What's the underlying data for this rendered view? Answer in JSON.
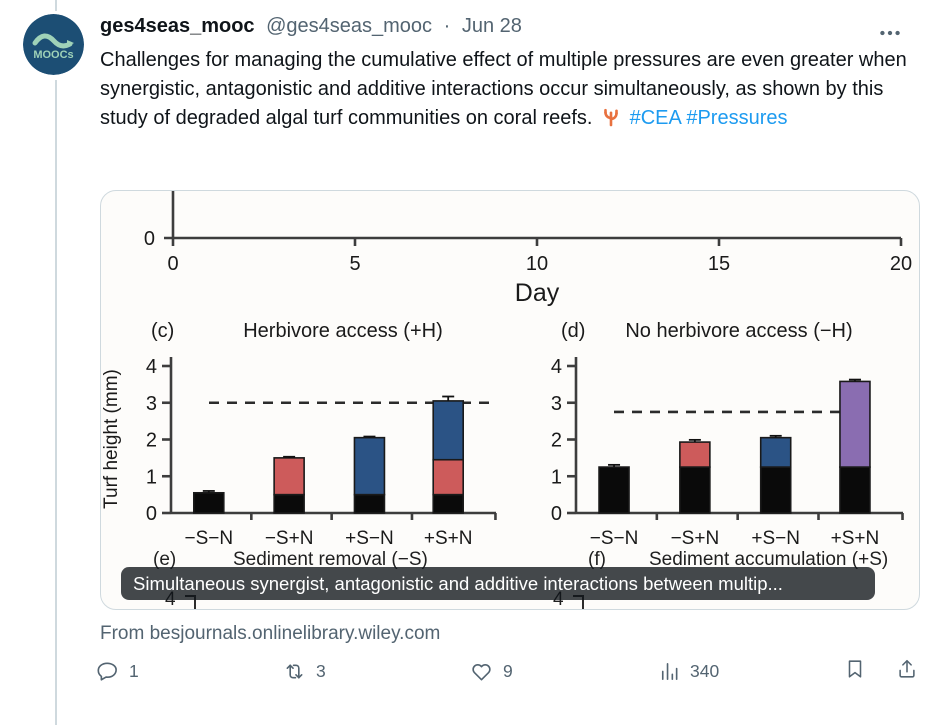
{
  "header": {
    "name": "ges4seas_mooc",
    "handle": "@ges4seas_mooc",
    "separator": "·",
    "date": "Jun 28",
    "avatar_text": "MOOCs",
    "avatar_bg": "#1c4e74",
    "avatar_accent": "#9fd2b8"
  },
  "tweet": {
    "text": "Challenges for managing the cumulative effect of multiple pressures are even greater when synergistic, antagonistic and additive interactions occur simultaneously, as shown by this study of degraded algal turf communities on coral reefs.",
    "hashtags": [
      "#CEA",
      "#Pressures"
    ],
    "link_color": "#1d9bf0",
    "coral_emoji_color": "#e8713f"
  },
  "media": {
    "caption": "Simultaneous synergist, antagonistic and additive interactions between multip...",
    "source": "From besjournals.onlinelibrary.wiley.com"
  },
  "chart_data": [
    {
      "type": "line",
      "note": "bottom x-axis of a cropped panel above",
      "xlabel": "Day",
      "x_range": [
        0,
        20
      ],
      "x_ticks": [
        "0",
        "5",
        "10",
        "15",
        "20"
      ],
      "visible_y_tick": "0"
    },
    {
      "type": "bar",
      "panel_label": "(c)",
      "title": "Herbivore access (+H)",
      "ylabel": "Turf height (mm)",
      "ylim": [
        0,
        4
      ],
      "y_ticks": [
        0,
        1,
        2,
        3,
        4
      ],
      "dashed_reference_y": 3.0,
      "categories": [
        "−S−N",
        "−S+N",
        "+S−N",
        "+S+N"
      ],
      "bars": [
        {
          "category": "−S−N",
          "segments": [
            {
              "name": "black",
              "color": "#0a0a0a",
              "value": 0.55
            }
          ],
          "error": 0.05
        },
        {
          "category": "−S+N",
          "segments": [
            {
              "name": "black",
              "color": "#0a0a0a",
              "value": 0.5
            },
            {
              "name": "red",
              "color": "#cd5b5b",
              "value": 1.0
            }
          ],
          "error": 0.03
        },
        {
          "category": "+S−N",
          "segments": [
            {
              "name": "black",
              "color": "#0a0a0a",
              "value": 0.5
            },
            {
              "name": "blue",
              "color": "#2b5385",
              "value": 1.55
            }
          ],
          "error": 0.03
        },
        {
          "category": "+S+N",
          "segments": [
            {
              "name": "black",
              "color": "#0a0a0a",
              "value": 0.5
            },
            {
              "name": "red",
              "color": "#cd5b5b",
              "value": 0.95
            },
            {
              "name": "blue",
              "color": "#2b5385",
              "value": 1.6
            }
          ],
          "error": 0.12
        }
      ]
    },
    {
      "type": "bar",
      "panel_label": "(d)",
      "title": "No herbivore access (−H)",
      "ylabel": "",
      "ylim": [
        0,
        4
      ],
      "y_ticks": [
        0,
        1,
        2,
        3,
        4
      ],
      "dashed_reference_y": 2.75,
      "categories": [
        "−S−N",
        "−S+N",
        "+S−N",
        "+S+N"
      ],
      "bars": [
        {
          "category": "−S−N",
          "segments": [
            {
              "name": "black",
              "color": "#0a0a0a",
              "value": 1.25
            }
          ],
          "error": 0.06
        },
        {
          "category": "−S+N",
          "segments": [
            {
              "name": "black",
              "color": "#0a0a0a",
              "value": 1.25
            },
            {
              "name": "red",
              "color": "#cd5b5b",
              "value": 0.68
            }
          ],
          "error": 0.06
        },
        {
          "category": "+S−N",
          "segments": [
            {
              "name": "black",
              "color": "#0a0a0a",
              "value": 1.25
            },
            {
              "name": "blue",
              "color": "#2b5385",
              "value": 0.8
            }
          ],
          "error": 0.05
        },
        {
          "category": "+S+N",
          "segments": [
            {
              "name": "black",
              "color": "#0a0a0a",
              "value": 1.25
            },
            {
              "name": "purple",
              "color": "#8a6db1",
              "value": 2.33
            }
          ],
          "error": 0.05
        }
      ]
    },
    {
      "type": "bar",
      "panel_label": "(e)",
      "title": "Sediment removal (−S)",
      "note": "cropped, only header and top y tick visible",
      "visible_y_tick": "4"
    },
    {
      "type": "bar",
      "panel_label": "(f)",
      "title": "Sediment accumulation (+S)",
      "note": "cropped, only header and top y tick visible",
      "visible_y_tick": "4"
    }
  ],
  "actions": {
    "reply_count": "1",
    "retweet_count": "3",
    "like_count": "9",
    "view_count": "340"
  }
}
